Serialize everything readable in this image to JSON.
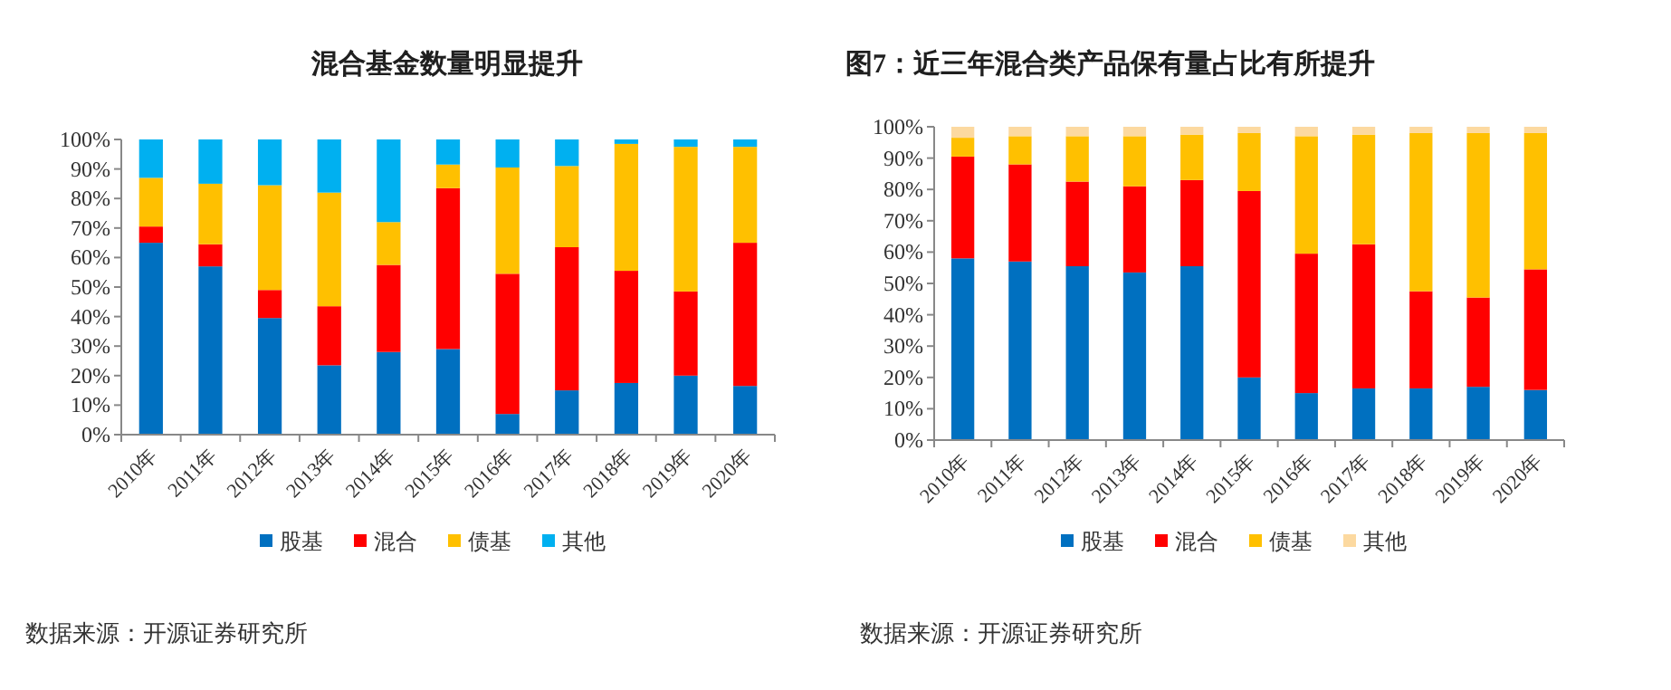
{
  "chart_data": [
    {
      "type": "bar",
      "stacked": true,
      "title": "混合基金数量明显提升",
      "categories": [
        "2010年",
        "2011年",
        "2012年",
        "2013年",
        "2014年",
        "2015年",
        "2016年",
        "2017年",
        "2018年",
        "2019年",
        "2020年"
      ],
      "series": [
        {
          "name": "股基",
          "color": "#0070c0",
          "values": [
            65,
            57,
            39.5,
            23.5,
            28,
            29,
            7,
            15,
            17.5,
            20,
            16.5
          ]
        },
        {
          "name": "混合",
          "color": "#ff0000",
          "values": [
            5.5,
            7.5,
            9.5,
            20,
            29.5,
            54.5,
            47.5,
            48.5,
            38,
            28.5,
            48.5
          ]
        },
        {
          "name": "债基",
          "color": "#ffc000",
          "values": [
            16.5,
            20.5,
            35.5,
            38.5,
            14.5,
            8,
            36,
            27.5,
            43,
            49,
            32.5
          ]
        },
        {
          "name": "其他",
          "color": "#00b0f0",
          "values": [
            13,
            15,
            15.5,
            18,
            28,
            8.5,
            9.5,
            9,
            1.5,
            2.5,
            2.5
          ]
        }
      ],
      "ylim": [
        0,
        100
      ],
      "yticks": [
        {
          "value": 0,
          "label": "0%"
        },
        {
          "value": 10,
          "label": "10%"
        },
        {
          "value": 20,
          "label": "20%"
        },
        {
          "value": 30,
          "label": "30%"
        },
        {
          "value": 40,
          "label": "40%"
        },
        {
          "value": 50,
          "label": "50%"
        },
        {
          "value": 60,
          "label": "60%"
        },
        {
          "value": 70,
          "label": "70%"
        },
        {
          "value": 80,
          "label": "80%"
        },
        {
          "value": 90,
          "label": "90%"
        },
        {
          "value": 100,
          "label": "100%"
        }
      ],
      "legend": "bottom",
      "grid": false,
      "annotations": [
        "数据来源：开源证券研究所"
      ]
    },
    {
      "type": "bar",
      "stacked": true,
      "title": "图7：近三年混合类产品保有量占比有所提升",
      "categories": [
        "2010年",
        "2011年",
        "2012年",
        "2013年",
        "2014年",
        "2015年",
        "2016年",
        "2017年",
        "2018年",
        "2019年",
        "2020年"
      ],
      "series": [
        {
          "name": "股基",
          "color": "#0070c0",
          "values": [
            58,
            57,
            55.5,
            53.5,
            55.5,
            20,
            15,
            16.5,
            16.5,
            17,
            16
          ]
        },
        {
          "name": "混合",
          "color": "#ff0000",
          "values": [
            32.5,
            31,
            27,
            27.5,
            27.5,
            59.5,
            44.5,
            46,
            31,
            28.5,
            38.5
          ]
        },
        {
          "name": "债基",
          "color": "#ffc000",
          "values": [
            6,
            9,
            14.5,
            16,
            14.5,
            18.5,
            37.5,
            35,
            50.5,
            52.5,
            43.5
          ]
        },
        {
          "name": "其他",
          "color": "#fcd9a0",
          "values": [
            3.5,
            3,
            3,
            3,
            2.5,
            2,
            3,
            2.5,
            2,
            2,
            2
          ]
        }
      ],
      "ylim": [
        0,
        100
      ],
      "yticks": [
        {
          "value": 0,
          "label": "0%"
        },
        {
          "value": 10,
          "label": "10%"
        },
        {
          "value": 20,
          "label": "20%"
        },
        {
          "value": 30,
          "label": "30%"
        },
        {
          "value": 40,
          "label": "40%"
        },
        {
          "value": 50,
          "label": "50%"
        },
        {
          "value": 60,
          "label": "60%"
        },
        {
          "value": 70,
          "label": "70%"
        },
        {
          "value": 80,
          "label": "80%"
        },
        {
          "value": 90,
          "label": "90%"
        },
        {
          "value": 100,
          "label": "100%"
        }
      ],
      "legend": "bottom",
      "grid": false,
      "annotations": [
        "数据来源：开源证券研究所"
      ]
    }
  ]
}
